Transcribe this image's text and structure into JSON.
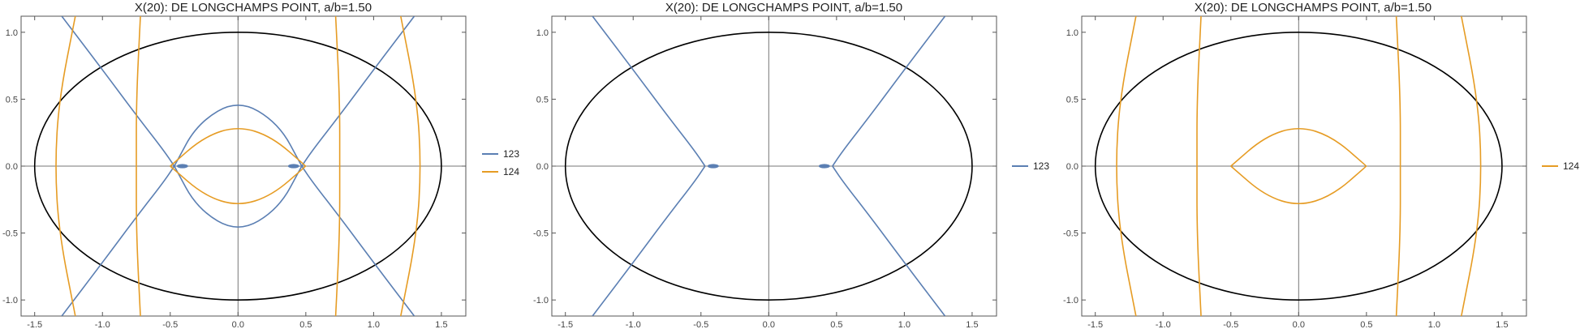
{
  "colors": {
    "series_123": "#5b7fb3",
    "series_124": "#e69c24",
    "ellipse": "#000000",
    "axes": "#777777",
    "frame": "#555555"
  },
  "chart_data": [
    {
      "type": "line",
      "title": "X(20): DE LONGCHAMPS POINT, a/b=1.50",
      "xlim": [
        -1.6,
        1.68
      ],
      "ylim": [
        -1.12,
        1.12
      ],
      "xticks": [
        "-1.5",
        "-1.0",
        "-0.5",
        "0.0",
        "0.5",
        "1.0",
        "1.5"
      ],
      "yticks": [
        "-1.0",
        "-0.5",
        "0.0",
        "0.5",
        "1.0"
      ],
      "ellipse": {
        "a": 1.5,
        "b": 1.0
      },
      "grid": false,
      "legend": "right",
      "series": [
        {
          "name": "123",
          "color": "#5b7fb3",
          "curves": [
            {
              "points": [
                [
                  -1.3,
                  1.12
                ],
                [
                  -1.0,
                  0.72
                ],
                [
                  -0.75,
                  0.38
                ],
                [
                  -0.55,
                  0.12
                ],
                [
                  -0.47,
                  0.0
                ]
              ]
            },
            {
              "points": [
                [
                  -1.3,
                  -1.12
                ],
                [
                  -1.0,
                  -0.72
                ],
                [
                  -0.75,
                  -0.38
                ],
                [
                  -0.55,
                  -0.12
                ],
                [
                  -0.47,
                  0.0
                ]
              ]
            },
            {
              "points": [
                [
                  1.3,
                  1.12
                ],
                [
                  1.0,
                  0.72
                ],
                [
                  0.75,
                  0.38
                ],
                [
                  0.55,
                  0.12
                ],
                [
                  0.47,
                  0.0
                ]
              ]
            },
            {
              "points": [
                [
                  1.3,
                  -1.12
                ],
                [
                  1.0,
                  -0.72
                ],
                [
                  0.75,
                  -0.38
                ],
                [
                  0.55,
                  -0.12
                ],
                [
                  0.47,
                  0.0
                ]
              ]
            },
            {
              "points": [
                [
                  -0.47,
                  0.0
                ],
                [
                  -0.3,
                  0.32
                ],
                [
                  0.0,
                  0.5
                ],
                [
                  0.3,
                  0.32
                ],
                [
                  0.47,
                  0.0
                ]
              ]
            },
            {
              "points": [
                [
                  -0.47,
                  0.0
                ],
                [
                  -0.3,
                  -0.32
                ],
                [
                  0.0,
                  -0.5
                ],
                [
                  0.3,
                  -0.32
                ],
                [
                  0.47,
                  0.0
                ]
              ]
            }
          ],
          "blobs": [
            [
              -0.41,
              0.0
            ],
            [
              0.41,
              0.0
            ]
          ]
        },
        {
          "name": "124",
          "color": "#e69c24",
          "curves": [
            {
              "points": [
                [
                  -1.2,
                  1.12
                ],
                [
                  -1.32,
                  0.5
                ],
                [
                  -1.35,
                  0.0
                ],
                [
                  -1.32,
                  -0.5
                ],
                [
                  -1.2,
                  -1.12
                ]
              ]
            },
            {
              "points": [
                [
                  1.2,
                  1.12
                ],
                [
                  1.32,
                  0.5
                ],
                [
                  1.35,
                  0.0
                ],
                [
                  1.32,
                  -0.5
                ],
                [
                  1.2,
                  -1.12
                ]
              ]
            },
            {
              "points": [
                [
                  -0.72,
                  1.12
                ],
                [
                  -0.75,
                  0.5
                ],
                [
                  -0.75,
                  0.0
                ],
                [
                  -0.75,
                  -0.5
                ],
                [
                  -0.72,
                  -1.12
                ]
              ]
            },
            {
              "points": [
                [
                  0.72,
                  1.12
                ],
                [
                  0.75,
                  0.5
                ],
                [
                  0.75,
                  0.0
                ],
                [
                  0.75,
                  -0.5
                ],
                [
                  0.72,
                  -1.12
                ]
              ]
            },
            {
              "points": [
                [
                  -0.5,
                  0.0
                ],
                [
                  -0.25,
                  0.22
                ],
                [
                  0.0,
                  0.3
                ],
                [
                  0.25,
                  0.22
                ],
                [
                  0.5,
                  0.0
                ]
              ]
            },
            {
              "points": [
                [
                  -0.5,
                  0.0
                ],
                [
                  -0.25,
                  -0.22
                ],
                [
                  0.0,
                  -0.3
                ],
                [
                  0.25,
                  -0.22
                ],
                [
                  0.5,
                  0.0
                ]
              ]
            }
          ]
        }
      ]
    },
    {
      "type": "line",
      "title": "X(20): DE LONGCHAMPS POINT, a/b=1.50",
      "xlim": [
        -1.6,
        1.68
      ],
      "ylim": [
        -1.12,
        1.12
      ],
      "xticks": [
        "-1.5",
        "-1.0",
        "-0.5",
        "0.0",
        "0.5",
        "1.0",
        "1.5"
      ],
      "yticks": [
        "-1.0",
        "-0.5",
        "0.0",
        "0.5",
        "1.0"
      ],
      "ellipse": {
        "a": 1.5,
        "b": 1.0
      },
      "grid": false,
      "legend": "right",
      "series": [
        {
          "name": "123",
          "color": "#5b7fb3",
          "curves": [
            {
              "points": [
                [
                  -1.3,
                  1.12
                ],
                [
                  -1.0,
                  0.72
                ],
                [
                  -0.75,
                  0.38
                ],
                [
                  -0.55,
                  0.12
                ],
                [
                  -0.47,
                  0.0
                ]
              ]
            },
            {
              "points": [
                [
                  -1.3,
                  -1.12
                ],
                [
                  -1.0,
                  -0.72
                ],
                [
                  -0.75,
                  -0.38
                ],
                [
                  -0.55,
                  -0.12
                ],
                [
                  -0.47,
                  0.0
                ]
              ]
            },
            {
              "points": [
                [
                  1.3,
                  1.12
                ],
                [
                  1.0,
                  0.72
                ],
                [
                  0.75,
                  0.38
                ],
                [
                  0.55,
                  0.12
                ],
                [
                  0.47,
                  0.0
                ]
              ]
            },
            {
              "points": [
                [
                  1.3,
                  -1.12
                ],
                [
                  1.0,
                  -0.72
                ],
                [
                  0.75,
                  -0.38
                ],
                [
                  0.55,
                  -0.12
                ],
                [
                  0.47,
                  0.0
                ]
              ]
            }
          ],
          "blobs": [
            [
              -0.41,
              0.0
            ],
            [
              0.41,
              0.0
            ]
          ]
        }
      ]
    },
    {
      "type": "line",
      "title": "X(20): DE LONGCHAMPS POINT, a/b=1.50",
      "xlim": [
        -1.6,
        1.68
      ],
      "ylim": [
        -1.12,
        1.12
      ],
      "xticks": [
        "-1.5",
        "-1.0",
        "-0.5",
        "0.0",
        "0.5",
        "1.0",
        "1.5"
      ],
      "yticks": [
        "-1.0",
        "-0.5",
        "0.0",
        "0.5",
        "1.0"
      ],
      "ellipse": {
        "a": 1.5,
        "b": 1.0
      },
      "grid": false,
      "legend": "right",
      "series": [
        {
          "name": "124",
          "color": "#e69c24",
          "curves": [
            {
              "points": [
                [
                  -1.2,
                  1.12
                ],
                [
                  -1.32,
                  0.5
                ],
                [
                  -1.35,
                  0.0
                ],
                [
                  -1.32,
                  -0.5
                ],
                [
                  -1.2,
                  -1.12
                ]
              ]
            },
            {
              "points": [
                [
                  1.2,
                  1.12
                ],
                [
                  1.32,
                  0.5
                ],
                [
                  1.35,
                  0.0
                ],
                [
                  1.32,
                  -0.5
                ],
                [
                  1.2,
                  -1.12
                ]
              ]
            },
            {
              "points": [
                [
                  -0.72,
                  1.12
                ],
                [
                  -0.75,
                  0.5
                ],
                [
                  -0.75,
                  0.0
                ],
                [
                  -0.75,
                  -0.5
                ],
                [
                  -0.72,
                  -1.12
                ]
              ]
            },
            {
              "points": [
                [
                  0.72,
                  1.12
                ],
                [
                  0.75,
                  0.5
                ],
                [
                  0.75,
                  0.0
                ],
                [
                  0.75,
                  -0.5
                ],
                [
                  0.72,
                  -1.12
                ]
              ]
            },
            {
              "points": [
                [
                  -0.5,
                  0.0
                ],
                [
                  -0.25,
                  0.22
                ],
                [
                  0.0,
                  0.3
                ],
                [
                  0.25,
                  0.22
                ],
                [
                  0.5,
                  0.0
                ]
              ]
            },
            {
              "points": [
                [
                  -0.5,
                  0.0
                ],
                [
                  -0.25,
                  -0.22
                ],
                [
                  0.0,
                  -0.3
                ],
                [
                  0.25,
                  -0.22
                ],
                [
                  0.5,
                  0.0
                ]
              ]
            }
          ]
        }
      ]
    }
  ]
}
